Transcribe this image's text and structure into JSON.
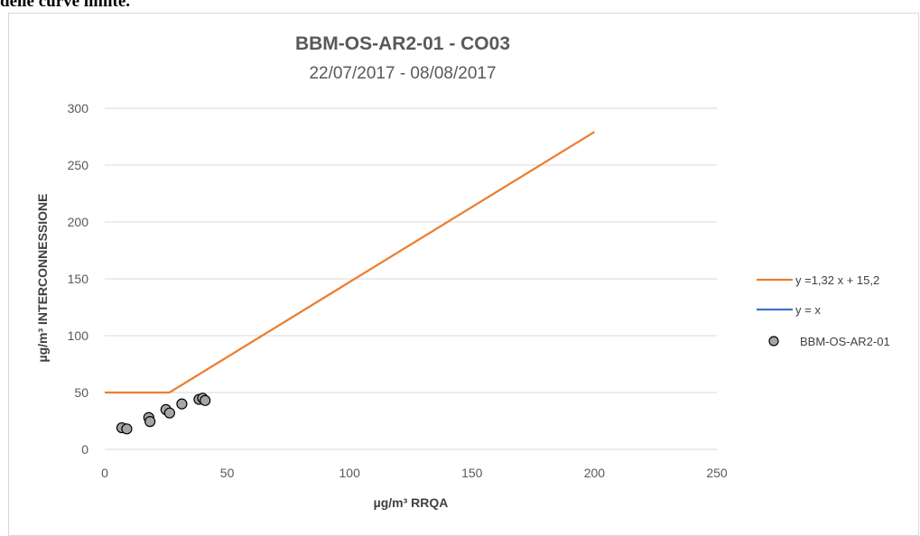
{
  "page": {
    "heading_fragment": "delle curve limite."
  },
  "chart_data": {
    "type": "scatter",
    "title": "BBM-OS-AR2-01 - CO03",
    "subtitle": "22/07/2017 - 08/08/2017",
    "xlabel": "µg/m³ RRQA",
    "ylabel": "µg/m³ INTERCONNESSIONE",
    "xlim": [
      0,
      250
    ],
    "ylim": [
      0,
      300
    ],
    "x_ticks": [
      0,
      50,
      100,
      150,
      200,
      250
    ],
    "y_ticks": [
      0,
      50,
      100,
      150,
      200,
      250,
      300
    ],
    "grid": "horizontal",
    "legend_position": "right",
    "series": [
      {
        "name": "y =1,32 x + 15,2",
        "kind": "line",
        "color": "#ed7d31",
        "points": [
          [
            0,
            50
          ],
          [
            26.4,
            50
          ],
          [
            200,
            279.2
          ]
        ]
      },
      {
        "name": "y = x",
        "kind": "line",
        "color": "#4472c4",
        "points": []
      },
      {
        "name": "BBM-OS-AR2-01",
        "kind": "scatter",
        "color": "#a5a5a5",
        "points": [
          [
            7,
            19
          ],
          [
            9,
            18
          ],
          [
            18,
            28
          ],
          [
            18.5,
            24.5
          ],
          [
            25,
            35
          ],
          [
            26.5,
            32
          ],
          [
            31.5,
            40
          ],
          [
            38.5,
            44
          ],
          [
            40,
            45
          ],
          [
            41,
            43
          ]
        ]
      }
    ]
  }
}
